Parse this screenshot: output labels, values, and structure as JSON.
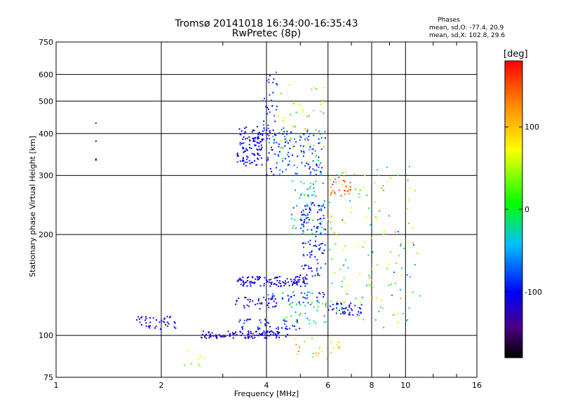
{
  "chart_data": {
    "type": "scatter",
    "title": "Tromsø 20141018 16:34:00-16:35:43",
    "subtitle": "RwPretec (8p)",
    "xlabel": "Frequency [MHz]",
    "ylabel": "Stationary phase Virtual Height [km]",
    "x_scale": "log",
    "y_scale": "log",
    "xlim": [
      1,
      16
    ],
    "ylim": [
      75,
      750
    ],
    "xticks": [
      1,
      2,
      4,
      6,
      8,
      10,
      16
    ],
    "yticks": [
      75,
      100,
      200,
      300,
      400,
      500,
      600,
      750
    ],
    "grid": true,
    "colorbar": {
      "label": "[deg]",
      "ticks": [
        100,
        0,
        -100
      ],
      "range": [
        -180,
        180
      ]
    },
    "phase_stats": {
      "heading": "Phases",
      "o_line": "mean, sd,O: -77.4, 20.9",
      "x_line": "mean, sd,X: 102.8, 29.6"
    },
    "clusters": [
      {
        "x0": 3.3,
        "x1": 3.9,
        "y0": 320,
        "y1": 420,
        "n": 110,
        "phase": -105,
        "spread": 15
      },
      {
        "x0": 3.9,
        "x1": 4.3,
        "y0": 380,
        "y1": 620,
        "n": 40,
        "phase": -90,
        "spread": 20
      },
      {
        "x0": 4.0,
        "x1": 5.9,
        "y0": 300,
        "y1": 420,
        "n": 130,
        "phase": -85,
        "spread": 40
      },
      {
        "x0": 4.3,
        "x1": 5.9,
        "y0": 330,
        "y1": 560,
        "n": 40,
        "phase": 60,
        "spread": 80
      },
      {
        "x0": 3.3,
        "x1": 5.3,
        "y0": 140,
        "y1": 150,
        "n": 120,
        "phase": -110,
        "spread": 15
      },
      {
        "x0": 5.0,
        "x1": 5.9,
        "y0": 150,
        "y1": 250,
        "n": 110,
        "phase": -95,
        "spread": 25
      },
      {
        "x0": 4.7,
        "x1": 5.9,
        "y0": 200,
        "y1": 290,
        "n": 60,
        "phase": -40,
        "spread": 40
      },
      {
        "x0": 2.6,
        "x1": 4.6,
        "y0": 98,
        "y1": 103,
        "n": 110,
        "phase": -115,
        "spread": 12
      },
      {
        "x0": 3.3,
        "x1": 5.0,
        "y0": 104,
        "y1": 112,
        "n": 45,
        "phase": -95,
        "spread": 20
      },
      {
        "x0": 1.7,
        "x1": 2.2,
        "y0": 104,
        "y1": 114,
        "n": 40,
        "phase": -110,
        "spread": 15
      },
      {
        "x0": 3.2,
        "x1": 4.3,
        "y0": 120,
        "y1": 130,
        "n": 40,
        "phase": -115,
        "spread": 12
      },
      {
        "x0": 4.0,
        "x1": 5.9,
        "y0": 125,
        "y1": 135,
        "n": 35,
        "phase": -80,
        "spread": 30
      },
      {
        "x0": 4.5,
        "x1": 6.0,
        "y0": 108,
        "y1": 126,
        "n": 35,
        "phase": -20,
        "spread": 50
      },
      {
        "x0": 6.0,
        "x1": 7.5,
        "y0": 115,
        "y1": 125,
        "n": 45,
        "phase": -100,
        "spread": 20
      },
      {
        "x0": 6.0,
        "x1": 11.0,
        "y0": 105,
        "y1": 320,
        "n": 150,
        "phase": 30,
        "spread": 110
      },
      {
        "x0": 6.0,
        "x1": 7.0,
        "y0": 260,
        "y1": 300,
        "n": 25,
        "phase": 150,
        "spread": 25
      },
      {
        "x0": 4.7,
        "x1": 6.5,
        "y0": 85,
        "y1": 98,
        "n": 25,
        "phase": 90,
        "spread": 60
      },
      {
        "x0": 1.3,
        "x1": 1.3,
        "y0": 310,
        "y1": 430,
        "n": 4,
        "phase": -160,
        "spread": 10
      },
      {
        "x0": 2.3,
        "x1": 2.7,
        "y0": 80,
        "y1": 90,
        "n": 8,
        "phase": 60,
        "spread": 40
      }
    ]
  }
}
